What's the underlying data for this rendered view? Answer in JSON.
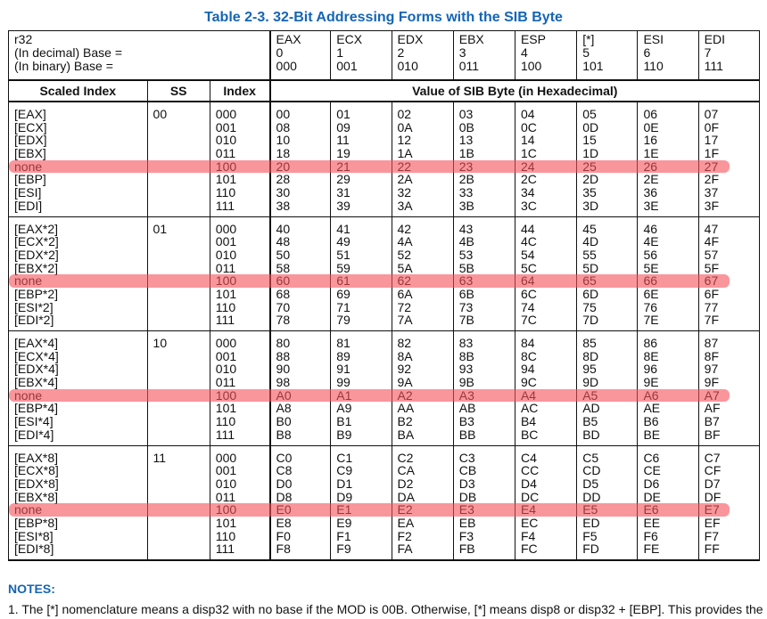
{
  "title": "Table 2-3.  32-Bit Addressing Forms with the SIB Byte",
  "header": {
    "r32_label": "r32",
    "decimal_label": "(In decimal) Base =",
    "binary_label": "(In binary) Base =",
    "bases": [
      {
        "name": "EAX",
        "dec": "0",
        "bin": "000"
      },
      {
        "name": "ECX",
        "dec": "1",
        "bin": "001"
      },
      {
        "name": "EDX",
        "dec": "2",
        "bin": "010"
      },
      {
        "name": "EBX",
        "dec": "3",
        "bin": "011"
      },
      {
        "name": "ESP",
        "dec": "4",
        "bin": "100"
      },
      {
        "name": "[*]",
        "dec": "5",
        "bin": "101"
      },
      {
        "name": "ESI",
        "dec": "6",
        "bin": "110"
      },
      {
        "name": "EDI",
        "dec": "7",
        "bin": "111"
      }
    ]
  },
  "columns": {
    "scaled_index": "Scaled Index",
    "ss": "SS",
    "index": "Index",
    "value": "Value of SIB Byte (in Hexadecimal)"
  },
  "groups": [
    {
      "ss": "00",
      "scaled_index": [
        "[EAX]",
        "[ECX]",
        "[EDX]",
        "[EBX]",
        "none",
        "[EBP]",
        "[ESI]",
        "[EDI]"
      ],
      "index": [
        "000",
        "001",
        "010",
        "011",
        "100",
        "101",
        "110",
        "111"
      ],
      "cols": [
        [
          "00",
          "08",
          "10",
          "18",
          "20",
          "28",
          "30",
          "38"
        ],
        [
          "01",
          "09",
          "11",
          "19",
          "21",
          "29",
          "31",
          "39"
        ],
        [
          "02",
          "0A",
          "12",
          "1A",
          "22",
          "2A",
          "32",
          "3A"
        ],
        [
          "03",
          "0B",
          "13",
          "1B",
          "23",
          "2B",
          "33",
          "3B"
        ],
        [
          "04",
          "0C",
          "14",
          "1C",
          "24",
          "2C",
          "34",
          "3C"
        ],
        [
          "05",
          "0D",
          "15",
          "1D",
          "25",
          "2D",
          "35",
          "3D"
        ],
        [
          "06",
          "0E",
          "16",
          "1E",
          "26",
          "2E",
          "36",
          "3E"
        ],
        [
          "07",
          "0F",
          "17",
          "1F",
          "27",
          "2F",
          "37",
          "3F"
        ]
      ]
    },
    {
      "ss": "01",
      "scaled_index": [
        "[EAX*2]",
        "[ECX*2]",
        "[EDX*2]",
        "[EBX*2]",
        "none",
        "[EBP*2]",
        "[ESI*2]",
        "[EDI*2]"
      ],
      "index": [
        "000",
        "001",
        "010",
        "011",
        "100",
        "101",
        "110",
        "111"
      ],
      "cols": [
        [
          "40",
          "48",
          "50",
          "58",
          "60",
          "68",
          "70",
          "78"
        ],
        [
          "41",
          "49",
          "51",
          "59",
          "61",
          "69",
          "71",
          "79"
        ],
        [
          "42",
          "4A",
          "52",
          "5A",
          "62",
          "6A",
          "72",
          "7A"
        ],
        [
          "43",
          "4B",
          "53",
          "5B",
          "63",
          "6B",
          "73",
          "7B"
        ],
        [
          "44",
          "4C",
          "54",
          "5C",
          "64",
          "6C",
          "74",
          "7C"
        ],
        [
          "45",
          "4D",
          "55",
          "5D",
          "65",
          "6D",
          "75",
          "7D"
        ],
        [
          "46",
          "4E",
          "56",
          "5E",
          "66",
          "6E",
          "76",
          "7E"
        ],
        [
          "47",
          "4F",
          "57",
          "5F",
          "67",
          "6F",
          "77",
          "7F"
        ]
      ]
    },
    {
      "ss": "10",
      "scaled_index": [
        "[EAX*4]",
        "[ECX*4]",
        "[EDX*4]",
        "[EBX*4]",
        "none",
        "[EBP*4]",
        "[ESI*4]",
        "[EDI*4]"
      ],
      "index": [
        "000",
        "001",
        "010",
        "011",
        "100",
        "101",
        "110",
        "111"
      ],
      "cols": [
        [
          "80",
          "88",
          "90",
          "98",
          "A0",
          "A8",
          "B0",
          "B8"
        ],
        [
          "81",
          "89",
          "91",
          "99",
          "A1",
          "A9",
          "B1",
          "B9"
        ],
        [
          "82",
          "8A",
          "92",
          "9A",
          "A2",
          "AA",
          "B2",
          "BA"
        ],
        [
          "83",
          "8B",
          "93",
          "9B",
          "A3",
          "AB",
          "B3",
          "BB"
        ],
        [
          "84",
          "8C",
          "94",
          "9C",
          "A4",
          "AC",
          "B4",
          "BC"
        ],
        [
          "85",
          "8D",
          "95",
          "9D",
          "A5",
          "AD",
          "B5",
          "BD"
        ],
        [
          "86",
          "8E",
          "96",
          "9E",
          "A6",
          "AE",
          "B6",
          "BE"
        ],
        [
          "87",
          "8F",
          "97",
          "9F",
          "A7",
          "AF",
          "B7",
          "BF"
        ]
      ]
    },
    {
      "ss": "11",
      "scaled_index": [
        "[EAX*8]",
        "[ECX*8]",
        "[EDX*8]",
        "[EBX*8]",
        "none",
        "[EBP*8]",
        "[ESI*8]",
        "[EDI*8]"
      ],
      "index": [
        "000",
        "001",
        "010",
        "011",
        "100",
        "101",
        "110",
        "111"
      ],
      "cols": [
        [
          "C0",
          "C8",
          "D0",
          "D8",
          "E0",
          "E8",
          "F0",
          "F8"
        ],
        [
          "C1",
          "C9",
          "D1",
          "D9",
          "E1",
          "E9",
          "F1",
          "F9"
        ],
        [
          "C2",
          "CA",
          "D2",
          "DA",
          "E2",
          "EA",
          "F2",
          "FA"
        ],
        [
          "C3",
          "CB",
          "D3",
          "DB",
          "E3",
          "EB",
          "F3",
          "FB"
        ],
        [
          "C4",
          "CC",
          "D4",
          "DC",
          "E4",
          "EC",
          "F4",
          "FC"
        ],
        [
          "C5",
          "CD",
          "D5",
          "DD",
          "E5",
          "ED",
          "F5",
          "FD"
        ],
        [
          "C6",
          "CE",
          "D6",
          "DE",
          "E6",
          "EE",
          "F6",
          "FE"
        ],
        [
          "C7",
          "CF",
          "D7",
          "DF",
          "E7",
          "EF",
          "F7",
          "FF"
        ]
      ]
    }
  ],
  "highlight_color": "#f5505a",
  "notes": {
    "title": "NOTES:",
    "note1": "1. The [*] nomenclature means a disp32 with no base if the MOD is 00B. Otherwise, [*] means disp8 or disp32 + [EBP]. This provides the"
  }
}
